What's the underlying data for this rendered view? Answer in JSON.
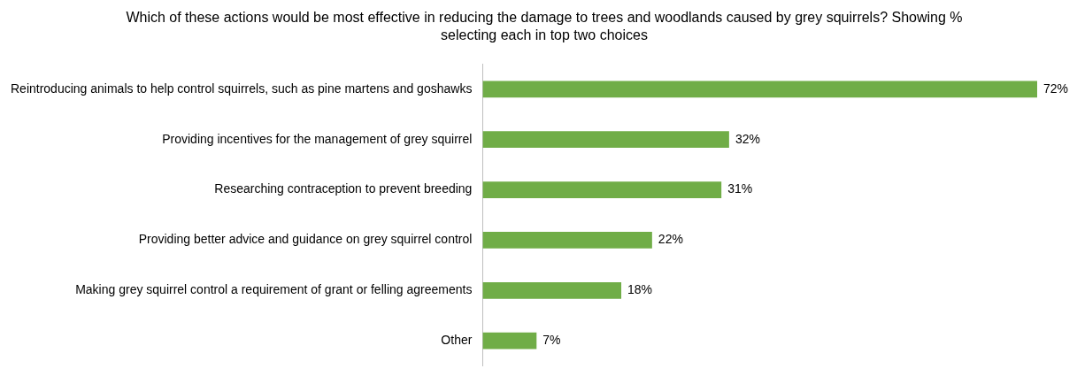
{
  "chart_data": {
    "type": "bar",
    "orientation": "horizontal",
    "title": "Which of these actions would be most effective in reducing the damage to trees and woodlands caused by grey squirrels? Showing % selecting each in top two choices",
    "categories": [
      "Reintroducing animals to help control squirrels, such as pine martens and goshawks",
      "Providing incentives for the management of grey squirrel",
      "Researching contraception to prevent breeding",
      "Providing better advice and guidance on grey squirrel control",
      "Making grey squirrel control a requirement of grant or felling agreements",
      "Other"
    ],
    "values": [
      72,
      32,
      31,
      22,
      18,
      7
    ],
    "value_labels": [
      "72%",
      "32%",
      "31%",
      "22%",
      "18%",
      "7%"
    ],
    "color": "#70ad47",
    "grid": false,
    "legend": false,
    "tick_labels": "y"
  }
}
